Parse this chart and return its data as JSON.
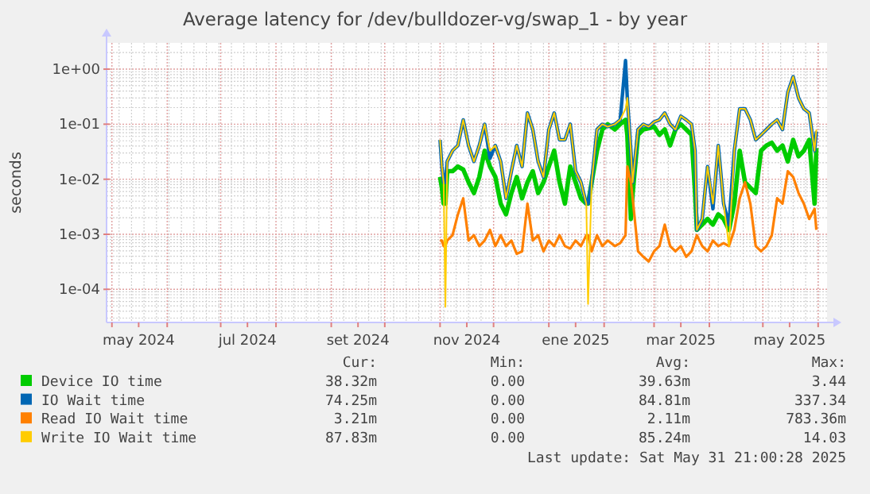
{
  "chart_data": {
    "type": "line",
    "title": "Average latency for /dev/bulldozer-vg/swap_1 - by year",
    "ylabel": "seconds",
    "log": true,
    "grid": true,
    "legend": "bottom",
    "ylim": [
      2.5e-05,
      3
    ],
    "yticks": [
      {
        "value": 0.0001,
        "label": "1e-04"
      },
      {
        "value": 0.001,
        "label": "1e-03"
      },
      {
        "value": 0.01,
        "label": "1e-02"
      },
      {
        "value": 0.1,
        "label": "1e-01"
      },
      {
        "value": 1,
        "label": "1e+00"
      }
    ],
    "xlim": [
      "2024-04-28",
      "2025-06-06"
    ],
    "xticks": [
      {
        "value": "2024-05-01",
        "label": null
      },
      {
        "value": "2024-05-16",
        "label": "may 2024"
      },
      {
        "value": "2024-06-01",
        "label": null
      },
      {
        "value": "2024-07-01",
        "label": null
      },
      {
        "value": "2024-07-16",
        "label": "jul 2024"
      },
      {
        "value": "2024-08-01",
        "label": null
      },
      {
        "value": "2024-09-01",
        "label": null
      },
      {
        "value": "2024-09-16",
        "label": "set 2024"
      },
      {
        "value": "2024-10-01",
        "label": null
      },
      {
        "value": "2024-11-01",
        "label": null
      },
      {
        "value": "2024-11-16",
        "label": "nov 2024"
      },
      {
        "value": "2024-12-01",
        "label": null
      },
      {
        "value": "2025-01-01",
        "label": null
      },
      {
        "value": "2025-01-16",
        "label": "ene 2025"
      },
      {
        "value": "2025-02-01",
        "label": null
      },
      {
        "value": "2025-03-01",
        "label": null
      },
      {
        "value": "2025-03-16",
        "label": "mar 2025"
      },
      {
        "value": "2025-04-01",
        "label": null
      },
      {
        "value": "2025-05-01",
        "label": null
      },
      {
        "value": "2025-05-16",
        "label": "may 2025"
      },
      {
        "value": "2025-06-01",
        "label": null
      }
    ],
    "x": [
      "2024-11-01",
      "2024-11-02",
      "2024-11-03",
      "2024-11-04",
      "2024-11-05",
      "2024-11-08",
      "2024-11-11",
      "2024-11-14",
      "2024-11-17",
      "2024-11-20",
      "2024-11-23",
      "2024-11-26",
      "2024-11-29",
      "2024-12-02",
      "2024-12-05",
      "2024-12-08",
      "2024-12-11",
      "2024-12-14",
      "2024-12-17",
      "2024-12-20",
      "2024-12-23",
      "2024-12-26",
      "2024-12-29",
      "2025-01-01",
      "2025-01-04",
      "2025-01-07",
      "2025-01-10",
      "2025-01-13",
      "2025-01-16",
      "2025-01-19",
      "2025-01-22",
      "2025-01-23",
      "2025-01-25",
      "2025-01-28",
      "2025-01-31",
      "2025-02-03",
      "2025-02-07",
      "2025-02-10",
      "2025-02-13",
      "2025-02-14",
      "2025-02-16",
      "2025-02-17",
      "2025-02-20",
      "2025-02-23",
      "2025-02-26",
      "2025-03-01",
      "2025-03-04",
      "2025-03-07",
      "2025-03-10",
      "2025-03-13",
      "2025-03-16",
      "2025-03-19",
      "2025-03-22",
      "2025-03-24",
      "2025-03-25",
      "2025-03-28",
      "2025-03-31",
      "2025-04-03",
      "2025-04-06",
      "2025-04-09",
      "2025-04-12",
      "2025-04-15",
      "2025-04-18",
      "2025-04-21",
      "2025-04-24",
      "2025-04-27",
      "2025-04-30",
      "2025-05-03",
      "2025-05-06",
      "2025-05-09",
      "2025-05-12",
      "2025-05-15",
      "2025-05-18",
      "2025-05-21",
      "2025-05-24",
      "2025-05-27",
      "2025-05-30",
      "2025-05-31"
    ],
    "series": [
      {
        "name": "Device IO time",
        "color": "#00cc00",
        "values": [
          0.011,
          0.007,
          0.0036,
          0.0036,
          0.014,
          0.014,
          0.017,
          0.015,
          0.0088,
          0.0056,
          0.011,
          0.033,
          0.017,
          0.011,
          0.0036,
          0.0023,
          0.0056,
          0.011,
          0.0045,
          0.0088,
          0.014,
          0.0056,
          0.0088,
          0.017,
          0.033,
          0.0088,
          0.0036,
          0.017,
          0.0088,
          0.0045,
          0.0036,
          0.0036,
          0.0088,
          0.033,
          0.08,
          0.1,
          0.08,
          0.1,
          0.12,
          0.064,
          0.0019,
          0.0056,
          0.064,
          0.08,
          0.084,
          0.09,
          0.064,
          0.08,
          0.041,
          0.08,
          0.1,
          0.08,
          0.064,
          0.0056,
          0.0012,
          0.0015,
          0.0019,
          0.0015,
          0.0023,
          0.0019,
          0.0012,
          0.0036,
          0.033,
          0.0088,
          0.007,
          0.0056,
          0.033,
          0.041,
          0.046,
          0.033,
          0.041,
          0.021,
          0.052,
          0.026,
          0.033,
          0.052,
          0.0036,
          0.037
        ]
      },
      {
        "name": "IO Wait time",
        "color": "#0066b3",
        "values": [
          0.052,
          0.017,
          0.0088,
          0.0088,
          0.021,
          0.033,
          0.041,
          0.12,
          0.041,
          0.021,
          0.041,
          0.1,
          0.024,
          0.041,
          0.021,
          0.0045,
          0.014,
          0.041,
          0.017,
          0.16,
          0.08,
          0.021,
          0.011,
          0.08,
          0.16,
          0.052,
          0.052,
          0.1,
          0.014,
          0.0088,
          0.0036,
          0.0036,
          0.0088,
          0.08,
          0.1,
          0.09,
          0.1,
          0.12,
          1.43,
          0.3,
          0.033,
          0.0088,
          0.08,
          0.1,
          0.09,
          0.11,
          0.12,
          0.16,
          0.1,
          0.08,
          0.14,
          0.12,
          0.1,
          0.033,
          0.0012,
          0.0019,
          0.017,
          0.0029,
          0.041,
          0.0036,
          0.0015,
          0.033,
          0.19,
          0.19,
          0.12,
          0.052,
          0.064,
          0.08,
          0.1,
          0.12,
          0.08,
          0.38,
          0.73,
          0.3,
          0.19,
          0.16,
          0.033,
          0.074
        ]
      },
      {
        "name": "Read IO Wait time",
        "color": "#ff8000",
        "values": [
          0.00077,
          0.00077,
          0.00061,
          0.00061,
          0.00077,
          0.00096,
          0.0023,
          0.0045,
          0.00077,
          0.00096,
          0.00061,
          0.00077,
          0.0012,
          0.00061,
          0.00096,
          0.00061,
          0.00077,
          0.00044,
          0.00049,
          0.0036,
          0.00077,
          0.00096,
          0.00049,
          0.00077,
          0.00061,
          0.00096,
          0.00061,
          0.00055,
          0.00077,
          0.00061,
          0.00096,
          0.00096,
          0.00049,
          0.00096,
          0.00061,
          0.00077,
          0.00061,
          0.00069,
          0.00096,
          0.017,
          0.0088,
          0.0045,
          0.00049,
          0.00039,
          0.00032,
          0.00049,
          0.00061,
          0.0015,
          0.00061,
          0.00049,
          0.00061,
          0.00039,
          0.00049,
          0.00077,
          0.00096,
          0.00061,
          0.00049,
          0.00077,
          0.00061,
          0.00069,
          0.00061,
          0.0012,
          0.0045,
          0.0088,
          0.0036,
          0.00061,
          0.00049,
          0.00061,
          0.00096,
          0.0045,
          0.0036,
          0.014,
          0.011,
          0.0056,
          0.0036,
          0.0019,
          0.0029,
          0.0012
        ]
      },
      {
        "name": "Write IO Wait time",
        "color": "#ffcc00",
        "values": [
          0.052,
          0.017,
          0.0088,
          4.8e-05,
          0.021,
          0.033,
          0.041,
          0.12,
          0.041,
          0.021,
          0.041,
          0.1,
          0.033,
          0.041,
          0.021,
          0.0045,
          0.014,
          0.041,
          0.017,
          0.16,
          0.08,
          0.021,
          0.011,
          0.08,
          0.16,
          0.052,
          0.052,
          0.1,
          0.014,
          0.0088,
          0.0036,
          5.4e-05,
          0.0088,
          0.08,
          0.1,
          0.09,
          0.1,
          0.12,
          0.19,
          0.3,
          0.033,
          0.0088,
          0.08,
          0.1,
          0.09,
          0.11,
          0.12,
          0.16,
          0.1,
          0.08,
          0.14,
          0.12,
          0.1,
          0.033,
          0.0012,
          0.0019,
          0.017,
          0.0036,
          0.041,
          0.0036,
          0.00061,
          0.033,
          0.19,
          0.19,
          0.12,
          0.052,
          0.064,
          0.08,
          0.1,
          0.12,
          0.08,
          0.38,
          0.73,
          0.3,
          0.19,
          0.16,
          0.033,
          0.08
        ]
      }
    ],
    "annotations": [
      "Cur:",
      "Min:",
      "Avg:",
      "Max:",
      "38.32m",
      "0.00",
      "39.63m",
      "3.44",
      "74.25m",
      "0.00",
      "84.81m",
      "337.34",
      "3.21m",
      "0.00",
      "2.11m",
      "783.36m",
      "87.83m",
      "0.00",
      "85.24m",
      "14.03",
      "Last update: Sat May 31 21:00:28 2025"
    ]
  }
}
